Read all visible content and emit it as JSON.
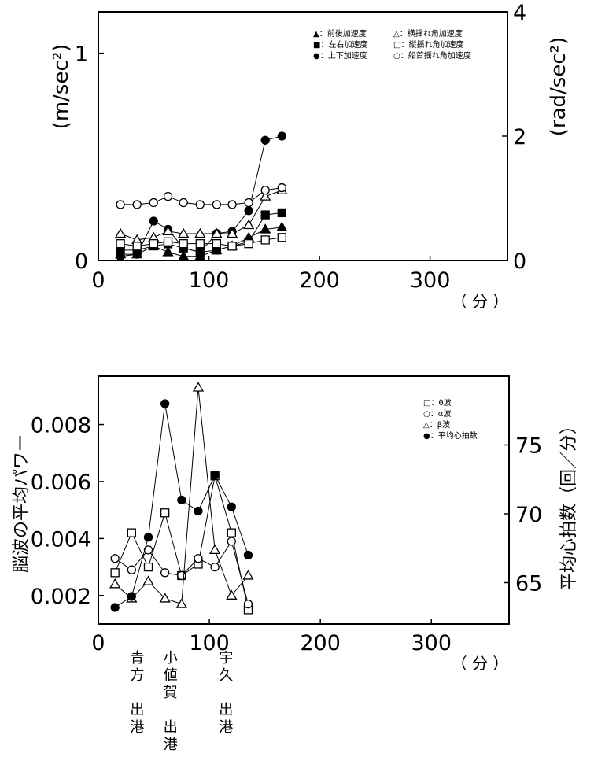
{
  "chart_data": [
    {
      "type": "line",
      "id": "top",
      "xlabel": "（ 分 ）",
      "ylabel": "(m/sec²)",
      "y2label": "(rad/sec²)",
      "xlim": [
        0,
        370
      ],
      "ylim": [
        0,
        1.2
      ],
      "y2lim": [
        0,
        4
      ],
      "xticks": [
        "0",
        "100",
        "200",
        "300"
      ],
      "xtick_values": [
        0,
        100,
        200,
        300
      ],
      "yticks": [
        "0",
        "1"
      ],
      "ytick_values": [
        0,
        1
      ],
      "y2ticks": [
        "0",
        "2",
        "4"
      ],
      "y2tick_values": [
        0,
        2,
        4
      ],
      "x": [
        20,
        35,
        50,
        63,
        77,
        92,
        107,
        121,
        136,
        151,
        166
      ],
      "series": [
        {
          "name": "前後加速度",
          "marker": "triangle-filled",
          "axis": "left",
          "values": [
            0.03,
            0.03,
            0.07,
            0.04,
            0.02,
            0.02,
            0.05,
            0.07,
            0.11,
            0.15,
            0.16
          ]
        },
        {
          "name": "左右加速度",
          "marker": "square-filled",
          "axis": "left",
          "values": [
            0.05,
            0.05,
            0.07,
            0.08,
            0.06,
            0.04,
            0.05,
            0.07,
            0.09,
            0.22,
            0.23
          ]
        },
        {
          "name": "上下加速度",
          "marker": "circle-filled",
          "axis": "left",
          "values": [
            0.02,
            0.03,
            0.19,
            0.15,
            0.06,
            0.04,
            0.13,
            0.14,
            0.24,
            0.58,
            0.6
          ]
        },
        {
          "name": "横揺れ角加速度",
          "marker": "triangle-open",
          "axis": "right",
          "values": [
            0.43,
            0.33,
            0.37,
            0.47,
            0.43,
            0.43,
            0.43,
            0.43,
            0.57,
            1.03,
            1.13
          ]
        },
        {
          "name": "縦揺れ角加速度",
          "marker": "square-open",
          "axis": "right",
          "values": [
            0.27,
            0.23,
            0.27,
            0.3,
            0.27,
            0.27,
            0.27,
            0.23,
            0.27,
            0.33,
            0.37
          ]
        },
        {
          "name": "船首揺れ角加速度",
          "marker": "circle-open",
          "axis": "right",
          "values": [
            0.9,
            0.9,
            0.93,
            1.03,
            0.93,
            0.9,
            0.9,
            0.9,
            0.93,
            1.13,
            1.17
          ]
        }
      ],
      "legend_texts": [
        "▲：前後加速度",
        "△：横揺れ角加速度",
        "■：左右加速度",
        "□：縦揺れ角加速度",
        "●：上下加速度",
        "○：船首揺れ角加速度"
      ]
    },
    {
      "type": "line",
      "id": "bottom",
      "xlabel": "（ 分 ）",
      "ylabel": "脳波の平均パワー",
      "y2label": "平均心拍数（回／分）",
      "xlim": [
        0,
        370
      ],
      "ylim": [
        0.001,
        0.0097
      ],
      "y2lim": [
        62,
        80
      ],
      "xticks": [
        "0",
        "100",
        "200",
        "300"
      ],
      "xtick_values": [
        0,
        100,
        200,
        300
      ],
      "yticks": [
        "0.002",
        "0.004",
        "0.006",
        "0.008"
      ],
      "ytick_values": [
        0.002,
        0.004,
        0.006,
        0.008
      ],
      "y2ticks": [
        "65",
        "70",
        "75"
      ],
      "y2tick_values": [
        65,
        70,
        75
      ],
      "series": [
        {
          "name": "θ波",
          "marker": "square-open",
          "axis": "left",
          "x": [
            15,
            30,
            45,
            60,
            75,
            90,
            105,
            120,
            135
          ],
          "values": [
            0.0028,
            0.0042,
            0.003,
            0.0049,
            0.0027,
            0.0031,
            0.0062,
            0.0042,
            0.0015
          ]
        },
        {
          "name": "α波",
          "marker": "circle-open",
          "axis": "left",
          "x": [
            15,
            30,
            45,
            60,
            75,
            90,
            105,
            120,
            135
          ],
          "values": [
            0.0033,
            0.0029,
            0.0036,
            0.0028,
            0.0027,
            0.0033,
            0.003,
            0.0039,
            0.0017
          ]
        },
        {
          "name": "β波",
          "marker": "triangle-open",
          "axis": "left",
          "x": [
            15,
            30,
            45,
            60,
            75,
            90,
            105,
            120,
            135
          ],
          "values": [
            0.0024,
            0.0019,
            0.0025,
            0.0019,
            0.0017,
            0.0093,
            0.0036,
            0.002,
            0.0027
          ]
        },
        {
          "name": "平均心拍数",
          "marker": "circle-filled",
          "axis": "right",
          "x": [
            15,
            30,
            45,
            60,
            75,
            90,
            105,
            120,
            135
          ],
          "values": [
            63.2,
            64.0,
            68.3,
            78.0,
            71.0,
            70.2,
            72.8,
            70.5,
            67.0
          ]
        }
      ],
      "legend_texts": [
        "□：θ波",
        "○：α波",
        "△：β波",
        "●：平均心拍数"
      ],
      "annotations": [
        {
          "x": 35,
          "lines": [
            "青",
            "方",
            "",
            "出",
            "港"
          ]
        },
        {
          "x": 65,
          "lines": [
            "小",
            "値",
            "賀",
            "",
            "出",
            "港"
          ]
        },
        {
          "x": 115,
          "lines": [
            "宇",
            "久",
            "",
            "出",
            "港"
          ]
        }
      ]
    }
  ]
}
